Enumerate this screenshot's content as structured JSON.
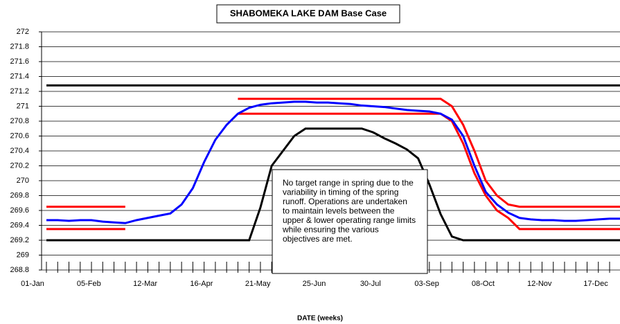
{
  "chart_data": {
    "type": "line",
    "title": "SHABOMEKA LAKE DAM Base Case",
    "x_label": "DATE (weeks)",
    "categories": [
      "01-Jan",
      null,
      null,
      null,
      null,
      "05-Feb",
      null,
      null,
      null,
      null,
      "12-Mar",
      null,
      null,
      null,
      null,
      "16-Apr",
      null,
      null,
      null,
      null,
      "21-May",
      null,
      null,
      null,
      null,
      "25-Jun",
      null,
      null,
      null,
      null,
      "30-Jul",
      null,
      null,
      null,
      null,
      "03-Sep",
      null,
      null,
      null,
      null,
      "08-Oct",
      null,
      null,
      null,
      null,
      "12-Nov",
      null,
      null,
      null,
      null,
      "17-Dec",
      null
    ],
    "ylim": [
      268.8,
      272
    ],
    "yticks": [
      268.8,
      269,
      269.2,
      269.4,
      269.6,
      269.8,
      270,
      270.2,
      270.4,
      270.6,
      270.8,
      271,
      271.2,
      271.4,
      271.6,
      271.8,
      272
    ],
    "grid": true,
    "series": [
      {
        "color": "#000000",
        "values": [
          271.28,
          271.28,
          271.28,
          271.28,
          271.28,
          271.28,
          271.28,
          271.28,
          271.28,
          271.28,
          271.28,
          271.28,
          271.28,
          271.28,
          271.28,
          271.28,
          271.28,
          271.28,
          271.28,
          271.28,
          271.28,
          271.28,
          271.28,
          271.28,
          271.28,
          271.28,
          271.28,
          271.28,
          271.28,
          271.28,
          271.28,
          271.28,
          271.28,
          271.28,
          271.28,
          271.28,
          271.28,
          271.28,
          271.28,
          271.28,
          271.28,
          271.28,
          271.28,
          271.28,
          271.28,
          271.28,
          271.28,
          271.28,
          271.28,
          271.28,
          271.28,
          271.28
        ]
      },
      {
        "color": "#000000",
        "values": [
          269.2,
          269.2,
          269.2,
          269.2,
          269.2,
          269.2,
          269.2,
          269.2,
          269.2,
          269.2,
          269.2,
          269.2,
          269.2,
          269.2,
          269.2,
          269.2,
          269.2,
          269.2,
          269.2,
          269.64,
          270.2,
          270.4,
          270.6,
          270.7,
          270.7,
          270.7,
          270.7,
          270.7,
          270.7,
          270.65,
          270.57,
          270.5,
          270.42,
          270.3,
          269.95,
          269.55,
          269.25,
          269.2,
          269.2,
          269.2,
          269.2,
          269.2,
          269.2,
          269.2,
          269.2,
          269.2,
          269.2,
          269.2,
          269.2,
          269.2,
          269.2,
          269.2
        ]
      },
      {
        "color": "#ff0000",
        "values": [
          269.65,
          269.65,
          269.65,
          269.65,
          269.65,
          269.65,
          269.65,
          269.65,
          null,
          null,
          null,
          null,
          null,
          null,
          null,
          null,
          null,
          271.1,
          271.1,
          271.1,
          271.1,
          271.1,
          271.1,
          271.1,
          271.1,
          271.1,
          271.1,
          271.1,
          271.1,
          271.1,
          271.1,
          271.1,
          271.1,
          271.1,
          271.1,
          271.1,
          271.0,
          270.75,
          270.4,
          270.0,
          269.8,
          269.68,
          269.65,
          269.65,
          269.65,
          269.65,
          269.65,
          269.65,
          269.65,
          269.65,
          269.65,
          269.65
        ]
      },
      {
        "color": "#ff0000",
        "values": [
          269.35,
          269.35,
          269.35,
          269.35,
          269.35,
          269.35,
          269.35,
          269.35,
          null,
          null,
          null,
          null,
          null,
          null,
          null,
          null,
          null,
          270.9,
          270.9,
          270.9,
          270.9,
          270.9,
          270.9,
          270.9,
          270.9,
          270.9,
          270.9,
          270.9,
          270.9,
          270.9,
          270.9,
          270.9,
          270.9,
          270.9,
          270.9,
          270.9,
          270.8,
          270.5,
          270.1,
          269.8,
          269.6,
          269.5,
          269.35,
          269.35,
          269.35,
          269.35,
          269.35,
          269.35,
          269.35,
          269.35,
          269.35,
          269.35
        ]
      },
      {
        "color": "#0000ff",
        "values": [
          269.47,
          269.47,
          269.46,
          269.47,
          269.47,
          269.45,
          269.44,
          269.43,
          269.47,
          269.5,
          269.53,
          269.56,
          269.68,
          269.9,
          270.25,
          270.55,
          270.75,
          270.9,
          270.98,
          271.02,
          271.04,
          271.05,
          271.06,
          271.06,
          271.05,
          271.05,
          271.04,
          271.03,
          271.01,
          271.0,
          270.99,
          270.97,
          270.95,
          270.94,
          270.93,
          270.9,
          270.82,
          270.6,
          270.2,
          269.85,
          269.68,
          269.57,
          269.5,
          269.48,
          269.47,
          269.47,
          269.46,
          269.46,
          269.47,
          269.48,
          269.49,
          269.49
        ]
      }
    ],
    "annotation": [
      "No target range in spring due to the",
      "variability in timing of the spring",
      "runoff. Operations are undertaken",
      "to maintain levels between the",
      "upper & lower operating range limits",
      "while ensuring the various",
      "objectives are met."
    ]
  }
}
